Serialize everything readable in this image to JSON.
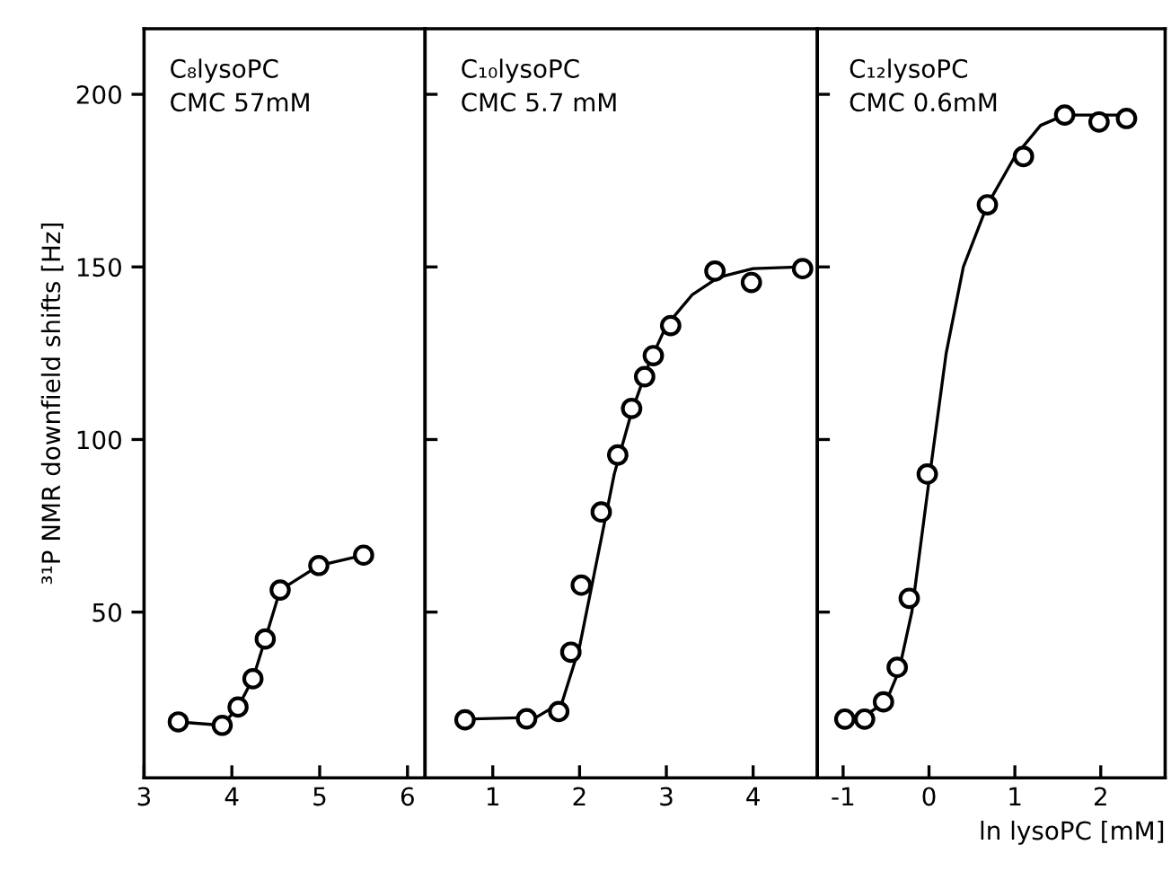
{
  "chart_data": [
    {
      "type": "line",
      "ylabel": "³¹P NMR downfield shifts [Hz]",
      "annotations": [
        "C₈lysoPC\nCMC 57mM"
      ],
      "xlim": [
        3,
        6.2
      ],
      "xticks": [
        3,
        4,
        5,
        6
      ],
      "ylim": [
        2,
        219
      ],
      "yticks": [
        50,
        100,
        150,
        200
      ],
      "grid": false,
      "marker": "circle",
      "line_style": "solid",
      "series": [
        {
          "color": "#000000",
          "x": [
            3.39,
            3.89,
            4.07,
            4.24,
            4.38,
            4.55,
            4.99,
            5.5
          ],
          "values": [
            18.2,
            17.2,
            22.5,
            30.7,
            42.2,
            56.4,
            63.5,
            66.5
          ]
        }
      ]
    },
    {
      "type": "scatter",
      "annotations": [
        "C₁₀lysoPC\nCMC 5.7 mM"
      ],
      "xlim": [
        0.22,
        4.74
      ],
      "xticks": [
        1,
        2,
        3,
        4
      ],
      "ylim": [
        2,
        219
      ],
      "yticks": [
        50,
        100,
        150,
        200
      ],
      "tick_labels": "x",
      "grid": false,
      "marker": "circle",
      "series": [
        {
          "type": "line",
          "color": "#000000",
          "marker": "none",
          "x": [
            0.68,
            1.5,
            1.8,
            2.0,
            2.2,
            2.4,
            2.6,
            2.8,
            3.0,
            3.3,
            3.6,
            4.0,
            4.57
          ],
          "values": [
            19,
            19.5,
            24,
            40,
            65,
            90,
            108,
            122,
            133,
            142,
            147,
            149.5,
            150
          ]
        },
        {
          "color": "#000000",
          "x": [
            0.68,
            1.39,
            1.76,
            1.9,
            2.02,
            2.25,
            2.44,
            2.6,
            2.75,
            2.85,
            3.05,
            3.56,
            3.98,
            4.57
          ],
          "values": [
            18.8,
            19.1,
            21.2,
            38.4,
            57.8,
            79,
            95.5,
            109,
            118.2,
            124.3,
            133,
            148.8,
            145.5,
            149.5
          ]
        }
      ]
    },
    {
      "type": "scatter",
      "xlabel": "ln lysoPC [mM]",
      "annotations": [
        "C₁₂lysoPC\nCMC 0.6mM"
      ],
      "xlim": [
        -1.3,
        2.75
      ],
      "xticks": [
        -1,
        0,
        1,
        2
      ],
      "ylim": [
        2,
        219
      ],
      "yticks": [
        50,
        100,
        150,
        200
      ],
      "tick_labels": "x",
      "grid": false,
      "marker": "circle",
      "series": [
        {
          "type": "line",
          "color": "#000000",
          "marker": "none",
          "x": [
            -0.98,
            -0.75,
            -0.5,
            -0.35,
            -0.2,
            0,
            0.2,
            0.4,
            0.68,
            1.0,
            1.3,
            1.58,
            2.0,
            2.3
          ],
          "values": [
            19,
            20,
            24,
            33,
            50,
            88,
            125,
            150,
            168,
            182,
            191,
            194,
            194,
            194
          ]
        },
        {
          "color": "#000000",
          "x": [
            -0.98,
            -0.75,
            -0.53,
            -0.37,
            -0.23,
            -0.02,
            0.68,
            1.1,
            1.58,
            1.98,
            2.3
          ],
          "values": [
            19,
            19,
            24,
            34,
            54,
            90,
            168,
            182,
            194,
            192,
            193
          ]
        }
      ]
    }
  ]
}
